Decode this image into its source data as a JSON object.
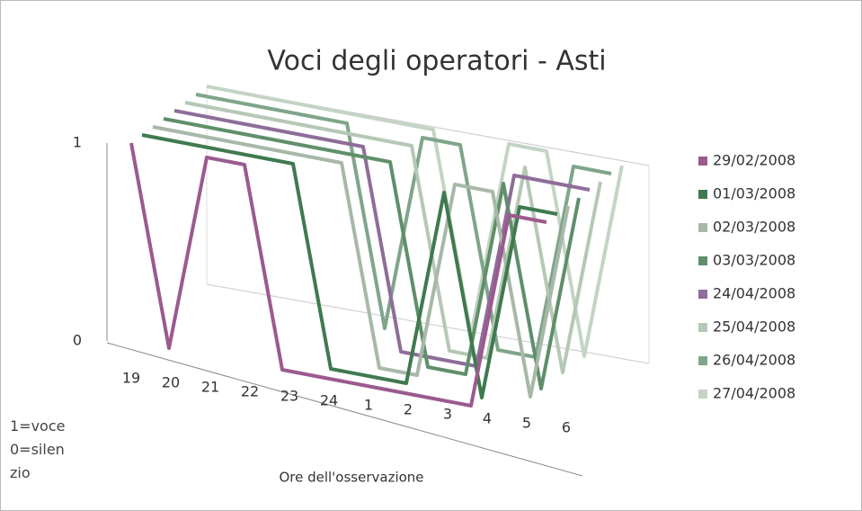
{
  "chart_data": {
    "type": "line",
    "title": "Voci degli operatori - Asti",
    "x_label": "Ore dell'osservazione",
    "annotations": [
      "1=voce",
      "0=silenzio"
    ],
    "categories": [
      "19",
      "20",
      "21",
      "22",
      "23",
      "24",
      "1",
      "2",
      "3",
      "4",
      "5",
      "6"
    ],
    "ylim": [
      0,
      1
    ],
    "yticks": [
      0,
      1
    ],
    "grid": true,
    "legend": "right",
    "series": [
      {
        "name": "29/02/2008",
        "color": "#9b5a8e",
        "values": [
          1,
          0,
          1,
          1,
          0,
          0,
          0,
          0,
          0,
          0,
          1,
          1
        ]
      },
      {
        "name": "01/03/2008",
        "color": "#3f7a4f",
        "values": [
          1,
          1,
          1,
          1,
          1,
          0,
          0,
          0,
          1,
          0,
          1,
          1
        ]
      },
      {
        "name": "02/03/2008",
        "color": "#a8b8a8",
        "values": [
          1,
          1,
          1,
          1,
          1,
          1,
          0,
          0,
          1,
          1,
          0,
          1
        ]
      },
      {
        "name": "03/03/2008",
        "color": "#5f8f6a",
        "values": [
          1,
          1,
          1,
          1,
          1,
          1,
          1,
          0,
          0,
          1,
          0,
          1
        ]
      },
      {
        "name": "24/04/2008",
        "color": "#8e6d9a",
        "values": [
          1,
          1,
          1,
          1,
          1,
          1,
          0,
          0,
          0,
          1,
          1,
          1
        ]
      },
      {
        "name": "25/04/2008",
        "color": "#b5c8b5",
        "values": [
          1,
          1,
          1,
          1,
          1,
          1,
          1,
          0,
          0,
          1,
          0,
          1
        ]
      },
      {
        "name": "26/04/2008",
        "color": "#7fa58a",
        "values": [
          1,
          1,
          1,
          1,
          1,
          0,
          1,
          1,
          0,
          0,
          1,
          1
        ]
      },
      {
        "name": "27/04/2008",
        "color": "#c4d4c4",
        "values": [
          1,
          1,
          1,
          1,
          1,
          1,
          1,
          0,
          1,
          1,
          0,
          1
        ]
      }
    ]
  }
}
